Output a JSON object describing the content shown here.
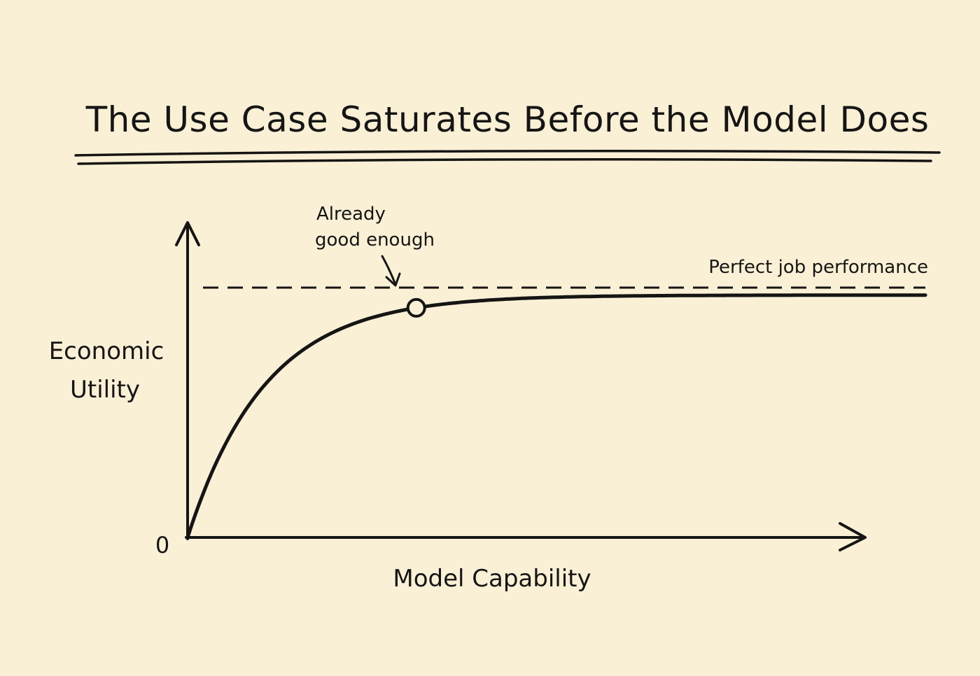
{
  "chart_data": {
    "type": "line",
    "title": "The Use Case Saturates Before the Model Does",
    "xlabel": "Model Capability",
    "ylabel_lines": [
      "Economic",
      "Utility"
    ],
    "origin_label": "0",
    "xlim": [
      0,
      1
    ],
    "ylim": [
      0,
      1
    ],
    "curve": {
      "shape": "saturating",
      "plateau": 0.97,
      "rate": 9.5
    },
    "reference_line": {
      "label": "Perfect job performance",
      "y": 1.0,
      "style": "dashed"
    },
    "marker": {
      "x": 0.31,
      "label_lines": [
        "Already",
        "good enough"
      ]
    },
    "grid": false,
    "legend": "none"
  },
  "colors": {
    "background": "#f9f0d6",
    "ink": "#161514"
  }
}
